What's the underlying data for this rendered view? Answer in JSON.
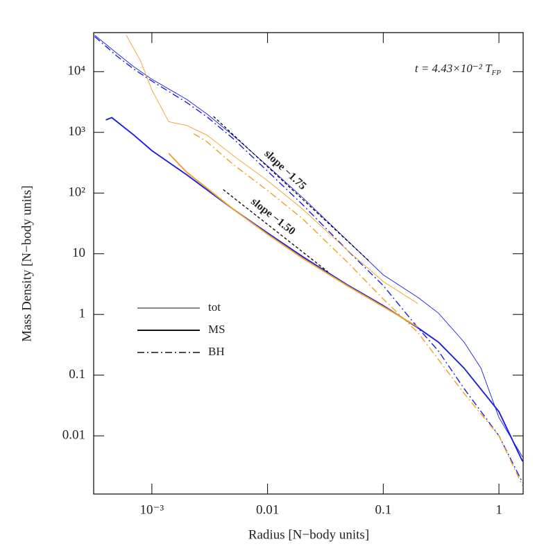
{
  "chart_data": {
    "type": "line",
    "xlabel": "Radius [N−body units]",
    "ylabel": "Mass Density [N−body units]",
    "annotation": {
      "text": "t = 4.43×10⁻² T",
      "sub": "FP"
    },
    "log_x": true,
    "log_y": true,
    "xlim": [
      0.000314,
      1.62
    ],
    "ylim": [
      0.0011,
      44000
    ],
    "xticks": [
      {
        "value": 0.001,
        "label": "10⁻³"
      },
      0.01,
      0.1,
      1
    ],
    "yticks": [
      0.01,
      0.1,
      1,
      10,
      {
        "value": 100,
        "label": "10²"
      },
      {
        "value": 1000,
        "label": "10³"
      },
      {
        "value": 10000,
        "label": "10⁴"
      }
    ],
    "legend": [
      {
        "label": "tot",
        "style": "thin"
      },
      {
        "label": "MS",
        "style": "thick"
      },
      {
        "label": "BH",
        "style": "dashdot"
      }
    ],
    "series": [
      {
        "color": "#1a1aee",
        "style": "thin",
        "x": [
          0.00032,
          0.0005,
          0.0007,
          0.001,
          0.002,
          0.003,
          0.005,
          0.01,
          0.02,
          0.05,
          0.1,
          0.2,
          0.3,
          0.5,
          0.7,
          1,
          1.6
        ],
        "values": [
          40000,
          20000,
          12000,
          7500,
          3500,
          2000,
          900,
          280,
          85,
          16,
          4.5,
          1.9,
          1.05,
          0.35,
          0.13,
          0.02,
          0.0045
        ]
      },
      {
        "color": "#1a1aee",
        "style": "dashdot",
        "x": [
          0.00032,
          0.0005,
          0.0007,
          0.001,
          0.002,
          0.003,
          0.005,
          0.01,
          0.02,
          0.05,
          0.1,
          0.2,
          0.3,
          0.5,
          1,
          1.6
        ],
        "values": [
          38000,
          18000,
          11000,
          7000,
          3100,
          1800,
          800,
          230,
          65,
          11,
          3,
          0.6,
          0.25,
          0.06,
          0.01,
          0.0017
        ]
      },
      {
        "color": "#1a1aee",
        "style": "thick",
        "x": [
          0.0004,
          0.00045,
          0.0007,
          0.001,
          0.002,
          0.005,
          0.01,
          0.02,
          0.05,
          0.1,
          0.2,
          0.3,
          0.5,
          1,
          1.6
        ],
        "values": [
          1600,
          1750,
          900,
          500,
          200,
          55,
          22,
          9,
          3,
          1.4,
          0.6,
          0.35,
          0.13,
          0.025,
          0.0038
        ]
      },
      {
        "color": "#f0a020",
        "style": "thin",
        "x": [
          0.0006,
          0.0008,
          0.001,
          0.0014,
          0.002,
          0.003,
          0.005,
          0.01,
          0.02,
          0.05,
          0.1,
          0.2
        ],
        "values": [
          40000,
          15000,
          5000,
          1500,
          1300,
          900,
          420,
          160,
          55,
          11,
          3.5,
          1.5
        ]
      },
      {
        "color": "#f0a020",
        "style": "thick",
        "x": [
          0.0014,
          0.002,
          0.003,
          0.005,
          0.01,
          0.02,
          0.05,
          0.1,
          0.2
        ],
        "values": [
          450,
          220,
          120,
          55,
          21,
          8.5,
          2.9,
          1.35,
          0.62
        ]
      },
      {
        "color": "#f0a020",
        "style": "dashdot",
        "x": [
          0.0023,
          0.003,
          0.005,
          0.01,
          0.02,
          0.05,
          0.1,
          0.2,
          0.5,
          1,
          1.6
        ],
        "values": [
          950,
          700,
          300,
          110,
          38,
          7,
          1.8,
          0.5,
          0.05,
          0.01,
          0.0015
        ]
      }
    ],
    "guides": [
      {
        "label": "slope −1.75",
        "x": [
          0.00341,
          0.0748
        ],
        "y": [
          1830,
          7.7
        ]
      },
      {
        "label": "slope −1.50",
        "x": [
          0.00414,
          0.0332
        ],
        "y": [
          114,
          5.05
        ]
      }
    ]
  }
}
